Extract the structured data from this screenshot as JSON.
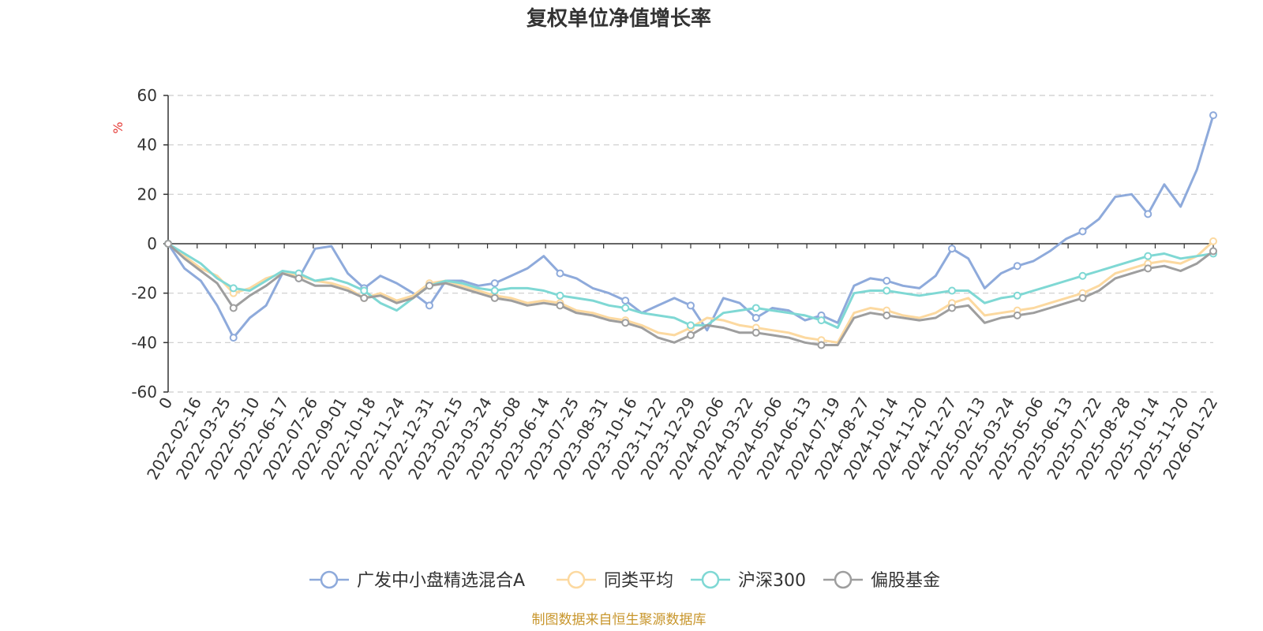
{
  "chart_data": {
    "type": "line",
    "title": "复权单位净值增长率",
    "ylabel_unit": "%",
    "ylim": [
      -60,
      60
    ],
    "y_ticks": [
      60,
      40,
      20,
      0,
      -20,
      -40,
      -60
    ],
    "x_tick_labels": [
      "0",
      "2022-02-16",
      "2022-03-25",
      "2022-05-10",
      "2022-06-17",
      "2022-07-26",
      "2022-09-01",
      "2022-10-18",
      "2022-11-24",
      "2022-12-31",
      "2023-02-15",
      "2023-03-24",
      "2023-05-08",
      "2023-06-14",
      "2023-07-25",
      "2023-08-31",
      "2023-10-16",
      "2023-11-22",
      "2023-12-29",
      "2024-02-06",
      "2024-03-22",
      "2024-05-06",
      "2024-06-13",
      "2024-07-19",
      "2024-08-27",
      "2024-10-14",
      "2024-11-20",
      "2024-12-27",
      "2025-02-13",
      "2025-03-24",
      "2025-05-06",
      "2025-06-13",
      "2025-07-22",
      "2025-08-28",
      "2025-10-14",
      "2025-11-20",
      "2026-01-22"
    ],
    "grid": "horizontal-dashed",
    "legend_position": "bottom",
    "series": [
      {
        "name": "广发中小盘精选混合A",
        "color": "#8eaadb",
        "values": [
          0,
          -10,
          -15,
          -25,
          -38,
          -30,
          -25,
          -12,
          -14,
          -2,
          -1,
          -12,
          -18,
          -13,
          -16,
          -20,
          -25,
          -15,
          -15,
          -17,
          -16,
          -13,
          -10,
          -5,
          -12,
          -14,
          -18,
          -20,
          -23,
          -28,
          -25,
          -22,
          -25,
          -35,
          -22,
          -24,
          -30,
          -26,
          -27,
          -31,
          -29,
          -32,
          -17,
          -14,
          -15,
          -17,
          -18,
          -13,
          -2,
          -6,
          -18,
          -12,
          -9,
          -7,
          -3,
          2,
          5,
          10,
          19,
          20,
          12,
          24,
          15,
          30,
          52
        ]
      },
      {
        "name": "同类平均",
        "color": "#fcd9a0",
        "values": [
          0,
          -5,
          -10,
          -13,
          -20,
          -18,
          -14,
          -12,
          -13,
          -15,
          -16,
          -18,
          -22,
          -20,
          -23,
          -21,
          -16,
          -15,
          -17,
          -19,
          -21,
          -22,
          -24,
          -23,
          -24,
          -27,
          -28,
          -30,
          -31,
          -33,
          -36,
          -37,
          -34,
          -30,
          -31,
          -33,
          -34,
          -35,
          -36,
          -38,
          -39,
          -40,
          -28,
          -26,
          -27,
          -29,
          -30,
          -28,
          -24,
          -22,
          -29,
          -28,
          -27,
          -26,
          -24,
          -22,
          -20,
          -17,
          -12,
          -10,
          -8,
          -7,
          -8,
          -5,
          1
        ]
      },
      {
        "name": "沪深300",
        "color": "#7fd8d4",
        "values": [
          0,
          -4,
          -8,
          -14,
          -18,
          -19,
          -15,
          -11,
          -12,
          -15,
          -14,
          -16,
          -19,
          -24,
          -27,
          -22,
          -17,
          -15,
          -16,
          -18,
          -19,
          -18,
          -18,
          -19,
          -21,
          -22,
          -23,
          -25,
          -26,
          -28,
          -29,
          -30,
          -33,
          -33,
          -28,
          -27,
          -26,
          -27,
          -28,
          -29,
          -31,
          -34,
          -20,
          -19,
          -19,
          -20,
          -21,
          -20,
          -19,
          -19,
          -24,
          -22,
          -21,
          -19,
          -17,
          -15,
          -13,
          -11,
          -9,
          -7,
          -5,
          -4,
          -6,
          -5,
          -4
        ]
      },
      {
        "name": "偏股基金",
        "color": "#9e9e9e",
        "values": [
          0,
          -6,
          -11,
          -16,
          -26,
          -21,
          -17,
          -12,
          -14,
          -17,
          -17,
          -19,
          -22,
          -21,
          -24,
          -22,
          -17,
          -16,
          -18,
          -20,
          -22,
          -23,
          -25,
          -24,
          -25,
          -28,
          -29,
          -31,
          -32,
          -34,
          -38,
          -40,
          -37,
          -33,
          -34,
          -36,
          -36,
          -37,
          -38,
          -40,
          -41,
          -41,
          -30,
          -28,
          -29,
          -30,
          -31,
          -30,
          -26,
          -25,
          -32,
          -30,
          -29,
          -28,
          -26,
          -24,
          -22,
          -19,
          -14,
          -12,
          -10,
          -9,
          -11,
          -8,
          -3
        ]
      }
    ]
  },
  "source_text": "制图数据来自恒生聚源数据库"
}
